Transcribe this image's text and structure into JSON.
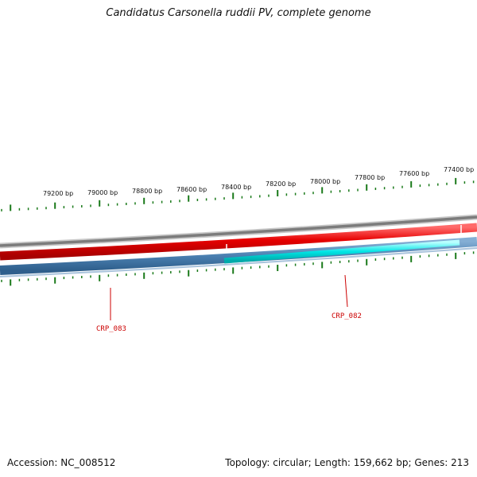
{
  "title": "Candidatus Carsonella ruddii PV, complete genome",
  "footer": {
    "accession": "Accession: NC_008512",
    "summary": "Topology: circular; Length: 159,662 bp; Genes: 213"
  },
  "ticks": [
    {
      "label": "79200 bp"
    },
    {
      "label": "79000 bp"
    },
    {
      "label": "78800 bp"
    },
    {
      "label": "78600 bp"
    },
    {
      "label": "78400 bp"
    },
    {
      "label": "78200 bp"
    },
    {
      "label": "78000 bp"
    },
    {
      "label": "77800 bp"
    },
    {
      "label": "77600 bp"
    },
    {
      "label": "77400 bp"
    }
  ],
  "genes": [
    {
      "label": "CRP_083"
    },
    {
      "label": "CRP_082"
    }
  ],
  "colors": {
    "forward_strand": "#e60000",
    "reverse_strand": "#4a7fb0",
    "highlight_gene": "#00e5e5",
    "backbone": "#808080",
    "tick": "#1a7a1a",
    "gene_label": "#cc0000"
  }
}
